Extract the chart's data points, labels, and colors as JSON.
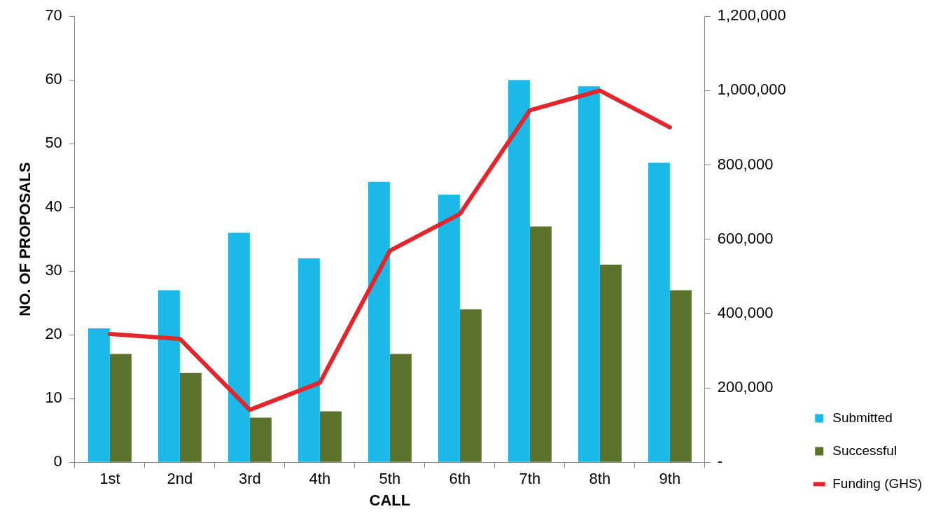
{
  "chart_data": {
    "type": "bar",
    "xlabel": "CALL",
    "ylabel": "NO. OF PROPOSALS",
    "categories": [
      "1st",
      "2nd",
      "3rd",
      "4th",
      "5th",
      "6th",
      "7th",
      "8th",
      "9th"
    ],
    "series": [
      {
        "name": "Submitted",
        "color": "#1cb8e8",
        "values": [
          21,
          27,
          36,
          32,
          44,
          42,
          60,
          59,
          47
        ]
      },
      {
        "name": "Successful",
        "color": "#5a7229",
        "values": [
          17,
          14,
          7,
          8,
          17,
          24,
          37,
          31,
          27
        ]
      },
      {
        "name": "Funding (GHS)",
        "type": "line",
        "axis": "y2",
        "color": "#e3262b",
        "values": [
          345000,
          332000,
          141000,
          214000,
          569000,
          668000,
          947000,
          1000000,
          901000
        ]
      }
    ],
    "ylim": [
      0,
      70
    ],
    "yticks": [
      0,
      10,
      20,
      30,
      40,
      50,
      60,
      70
    ],
    "y2lim": [
      0,
      1200000
    ],
    "y2ticks": [
      {
        "value": 0,
        "label": "-"
      },
      {
        "value": 200000,
        "label": "200,000"
      },
      {
        "value": 400000,
        "label": "400,000"
      },
      {
        "value": 600000,
        "label": "600,000"
      },
      {
        "value": 800000,
        "label": "800,000"
      },
      {
        "value": 1000000,
        "label": "1,000,000"
      },
      {
        "value": 1200000,
        "label": "1,200,000"
      }
    ],
    "grid": false,
    "legend": "bottom right",
    "marker": "none"
  }
}
